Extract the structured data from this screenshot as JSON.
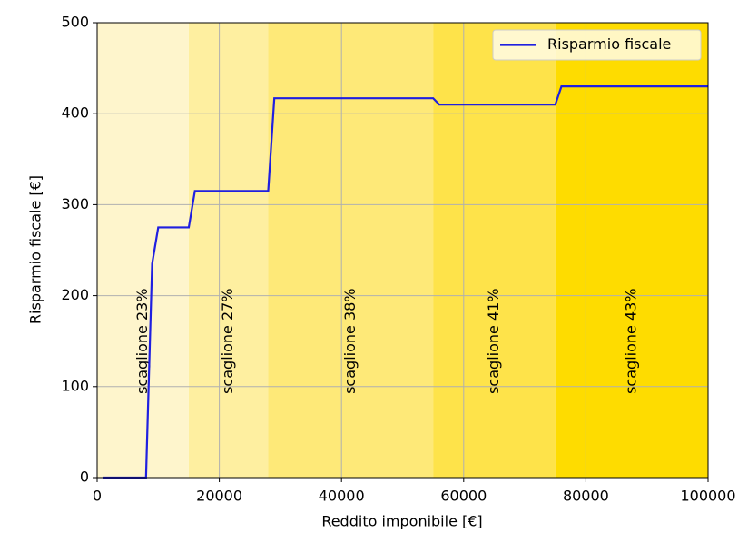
{
  "chart_data": {
    "type": "line",
    "xlabel": "Reddito imponibile [€]",
    "ylabel": "Risparmio fiscale [€]",
    "x": [
      1000,
      8000,
      9000,
      10000,
      15000,
      16000,
      28000,
      29000,
      55000,
      56000,
      75000,
      76000,
      100000
    ],
    "series": [
      {
        "name": "Risparmio fiscale",
        "color": "#1f1fe0",
        "values": [
          0,
          0,
          235,
          275,
          275,
          315,
          315,
          417,
          417,
          410,
          410,
          430,
          430
        ]
      }
    ],
    "xlim": [
      0,
      100000
    ],
    "ylim": [
      0,
      500
    ],
    "xticks": [
      0,
      20000,
      40000,
      60000,
      80000,
      100000
    ],
    "yticks": [
      0,
      100,
      200,
      300,
      400,
      500
    ],
    "grid": true,
    "legend": "upper right",
    "bands": [
      {
        "start": 0,
        "end": 15000,
        "color": "#fef5cc",
        "label": "scaglione 23%"
      },
      {
        "start": 15000,
        "end": 28000,
        "color": "#feefa0",
        "label": "scaglione 27%"
      },
      {
        "start": 28000,
        "end": 55000,
        "color": "#fee978",
        "label": "scaglione 38%"
      },
      {
        "start": 55000,
        "end": 75000,
        "color": "#fee34a",
        "label": "scaglione 41%"
      },
      {
        "start": 75000,
        "end": 100000,
        "color": "#fedc00",
        "label": "scaglione 43%"
      }
    ]
  }
}
